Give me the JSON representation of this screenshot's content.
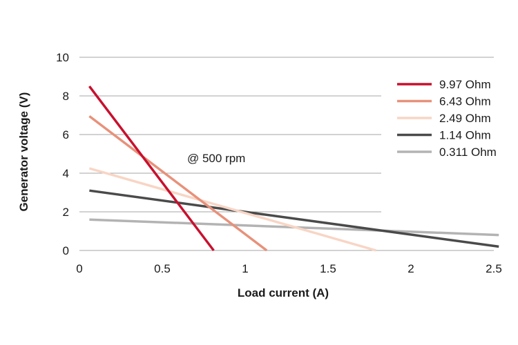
{
  "chart_data": {
    "type": "line",
    "xlabel": "Load current (A)",
    "ylabel": "Generator voltage (V)",
    "xlim": [
      0,
      2.5
    ],
    "ylim": [
      0,
      10
    ],
    "xticks": [
      "0",
      "0.5",
      "1",
      "1.5",
      "2",
      "2.5"
    ],
    "yticks": [
      "0",
      "2",
      "4",
      "6",
      "8",
      "10"
    ],
    "grid": "horizontal",
    "legend_position": "right",
    "annotation": "@ 500 rpm",
    "series": [
      {
        "name": "9.97 Ohm",
        "color": "#c8102e",
        "x": [
          0.06,
          0.81
        ],
        "y": [
          8.5,
          0.0
        ]
      },
      {
        "name": "6.43 Ohm",
        "color": "#e8917a",
        "x": [
          0.06,
          1.13
        ],
        "y": [
          6.95,
          0.0
        ]
      },
      {
        "name": "2.49 Ohm",
        "color": "#f8d5c5",
        "x": [
          0.06,
          1.79
        ],
        "y": [
          4.25,
          0.0
        ]
      },
      {
        "name": "1.14 Ohm",
        "color": "#4a4a4a",
        "x": [
          0.06,
          2.53
        ],
        "y": [
          3.1,
          0.2
        ]
      },
      {
        "name": "0.311 Ohm",
        "color": "#b3b3b3",
        "x": [
          0.06,
          2.53
        ],
        "y": [
          1.6,
          0.8
        ]
      }
    ]
  }
}
